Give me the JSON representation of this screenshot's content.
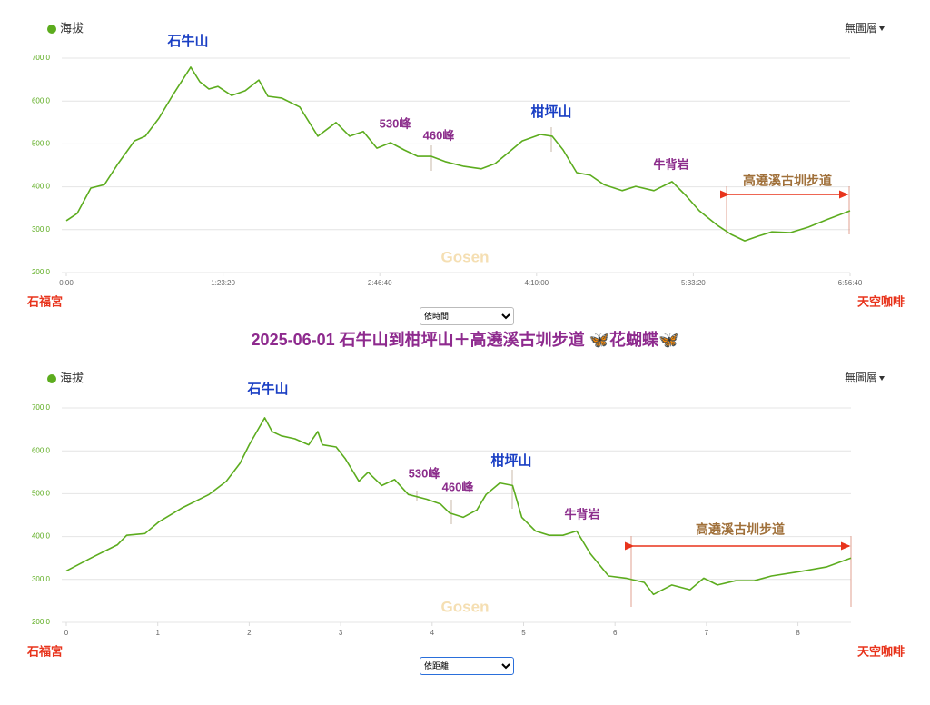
{
  "title": "2025-06-01 石牛山到柑坪山＋高遶溪古圳步道 🦋花蝴蝶🦋",
  "chart_data": [
    {
      "type": "line",
      "x_mode": "依時間",
      "layer_menu": "無圖層",
      "watermark": "Gosen",
      "start_label": "石福宮",
      "end_label": "天空咖啡",
      "x": [
        0,
        348,
        782,
        1217,
        1651,
        2173,
        2520,
        2955,
        3390,
        3969,
        4259,
        4548,
        4838,
        5273,
        5707,
        6142,
        6432,
        6866,
        7446,
        8025,
        8605,
        9039,
        9474,
        9908,
        10342,
        10777,
        11211,
        11646,
        12080,
        12660,
        13239,
        13674,
        14108,
        14543,
        15122,
        15499,
        15846,
        16281,
        16715,
        17150,
        17729,
        18164,
        18743,
        19323,
        19757,
        20192,
        20771,
        21206,
        21640,
        22075,
        22510,
        23089,
        23668,
        24247,
        25000
      ],
      "series": [
        {
          "name": "海拔",
          "color": "#5cac1e",
          "values": [
            321,
            338,
            397,
            405,
            454,
            507,
            518,
            560,
            613,
            679,
            645,
            628,
            634,
            613,
            624,
            649,
            611,
            607,
            586,
            518,
            550,
            518,
            529,
            490,
            503,
            486,
            471,
            471,
            459,
            448,
            442,
            454,
            480,
            507,
            522,
            518,
            486,
            433,
            427,
            405,
            391,
            401,
            391,
            412,
            380,
            344,
            310,
            289,
            274,
            285,
            295,
            293,
            306,
            323,
            344
          ]
        }
      ],
      "xlim": [
        0,
        25000
      ],
      "xticks": [
        {
          "value": 0,
          "label": "0:00"
        },
        {
          "value": 5000,
          "label": "1:23:20"
        },
        {
          "value": 10000,
          "label": "2:46:40"
        },
        {
          "value": 15000,
          "label": "4:10:00"
        },
        {
          "value": 20000,
          "label": "5:33:20"
        },
        {
          "value": 25000,
          "label": "6:56:40"
        }
      ],
      "ylim": [
        200,
        700
      ],
      "yticks": [
        {
          "value": 200,
          "label": "200.0"
        },
        {
          "value": 300,
          "label": "300.0"
        },
        {
          "value": 400,
          "label": "400.0"
        },
        {
          "value": 500,
          "label": "500.0"
        },
        {
          "value": 600,
          "label": "600.0"
        },
        {
          "value": 700,
          "label": "700.0"
        }
      ],
      "grid": true,
      "annotations": [
        "石牛山",
        "530峰",
        "460峰",
        "柑坪山",
        "牛背岩",
        "高遶溪古圳步道"
      ]
    },
    {
      "type": "line",
      "x_mode": "依距離",
      "layer_menu": "無圖層",
      "watermark": "Gosen",
      "start_label": "石福宮",
      "end_label": "天空咖啡",
      "x": [
        0,
        0.27,
        0.56,
        0.66,
        0.86,
        1.01,
        1.26,
        1.56,
        1.75,
        1.9,
        2.0,
        2.17,
        2.25,
        2.35,
        2.5,
        2.65,
        2.75,
        2.8,
        2.95,
        3.05,
        3.2,
        3.3,
        3.45,
        3.59,
        3.74,
        3.94,
        4.09,
        4.19,
        4.34,
        4.49,
        4.59,
        4.74,
        4.88,
        4.98,
        5.13,
        5.28,
        5.43,
        5.58,
        5.73,
        5.93,
        6.12,
        6.32,
        6.42,
        6.62,
        6.82,
        6.97,
        7.12,
        7.32,
        7.52,
        7.71,
        8.01,
        8.31,
        8.58
      ],
      "series": [
        {
          "name": "海拔",
          "color": "#5cac1e",
          "values": [
            320,
            350,
            381,
            403,
            407,
            434,
            466,
            498,
            529,
            571,
            614,
            677,
            645,
            635,
            628,
            614,
            645,
            614,
            609,
            582,
            529,
            550,
            519,
            533,
            498,
            487,
            476,
            455,
            445,
            462,
            498,
            525,
            519,
            445,
            413,
            403,
            403,
            413,
            360,
            308,
            303,
            293,
            265,
            287,
            276,
            303,
            287,
            297,
            297,
            308,
            318,
            329,
            350
          ]
        }
      ],
      "xlim": [
        0,
        8.58
      ],
      "xticks": [
        0,
        1,
        2,
        3,
        4,
        5,
        6,
        7,
        8
      ],
      "ylim": [
        200,
        700
      ],
      "yticks": [
        {
          "value": 200,
          "label": "200.0"
        },
        {
          "value": 300,
          "label": "300.0"
        },
        {
          "value": 400,
          "label": "400.0"
        },
        {
          "value": 500,
          "label": "500.0"
        },
        {
          "value": 600,
          "label": "600.0"
        },
        {
          "value": 700,
          "label": "700.0"
        }
      ],
      "grid": true,
      "annotations": [
        "石牛山",
        "530峰",
        "460峰",
        "柑坪山",
        "牛背岩",
        "高遶溪古圳步道"
      ]
    }
  ]
}
